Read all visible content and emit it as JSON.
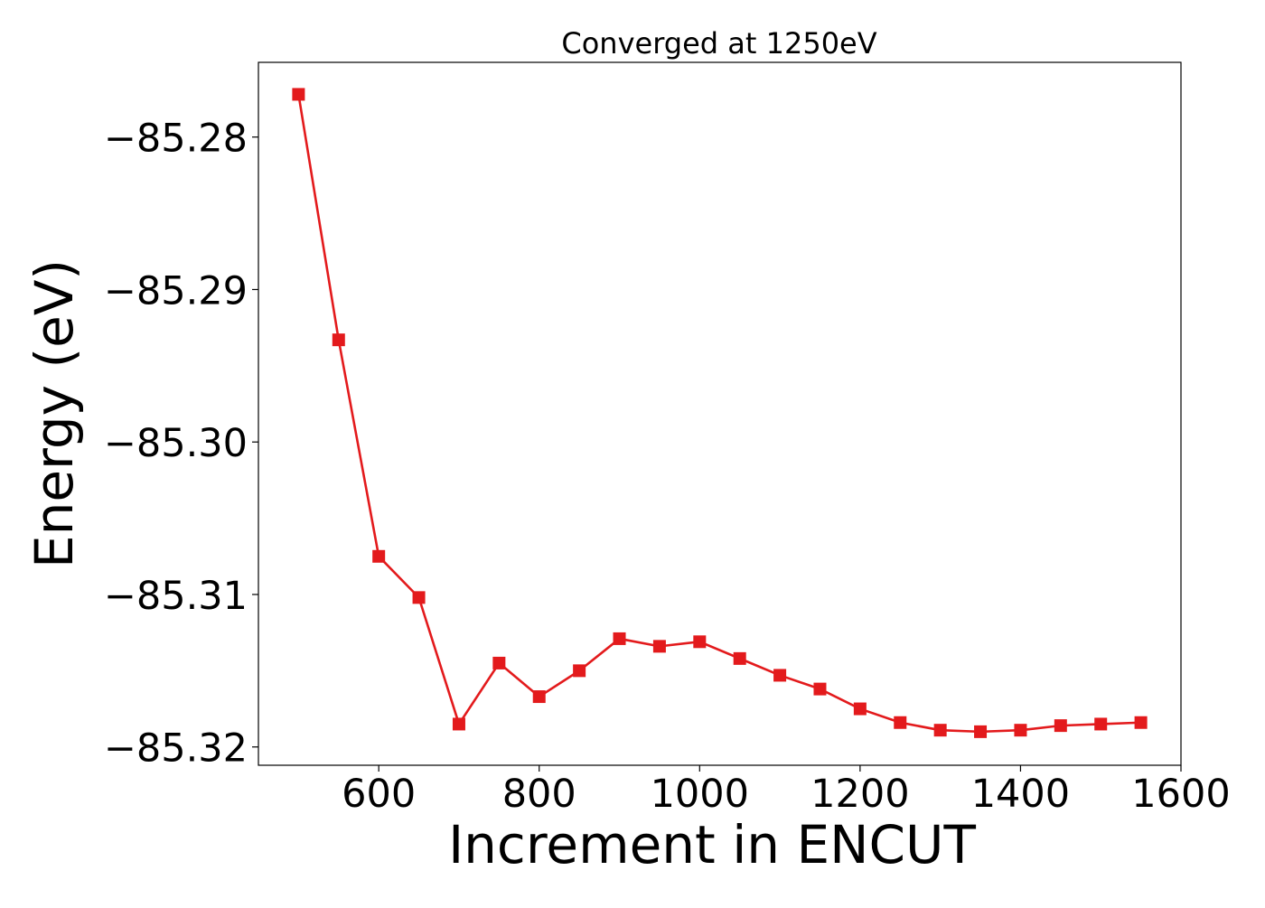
{
  "chart_data": {
    "type": "line",
    "title": "Converged at 1250eV",
    "xlabel": "Increment in ENCUT",
    "ylabel": "Energy (eV)",
    "xlim": [
      450,
      1600
    ],
    "ylim": [
      -85.3212,
      -85.2751
    ],
    "xticks": [
      600,
      800,
      1000,
      1200,
      1400,
      1600
    ],
    "xtick_labels": [
      "600",
      "800",
      "1000",
      "1200",
      "1400",
      "1600"
    ],
    "yticks": [
      -85.28,
      -85.29,
      -85.3,
      -85.31,
      -85.32
    ],
    "ytick_labels": [
      "−85.28",
      "−85.29",
      "−85.30",
      "−85.31",
      "−85.32"
    ],
    "grid": false,
    "marker": "square",
    "color": "#e31a1c",
    "series": [
      {
        "x": [
          500,
          550,
          600,
          650,
          700,
          750,
          800,
          850,
          900,
          950,
          1000,
          1050,
          1100,
          1150,
          1200,
          1250,
          1300,
          1350,
          1400,
          1450,
          1500,
          1550
        ],
        "values": [
          -85.2772,
          -85.2933,
          -85.3075,
          -85.3102,
          -85.3185,
          -85.3145,
          -85.3167,
          -85.315,
          -85.3129,
          -85.3134,
          -85.3131,
          -85.3142,
          -85.3153,
          -85.3162,
          -85.3175,
          -85.3184,
          -85.3189,
          -85.319,
          -85.3189,
          -85.3186,
          -85.3185,
          -85.3184
        ]
      }
    ]
  }
}
